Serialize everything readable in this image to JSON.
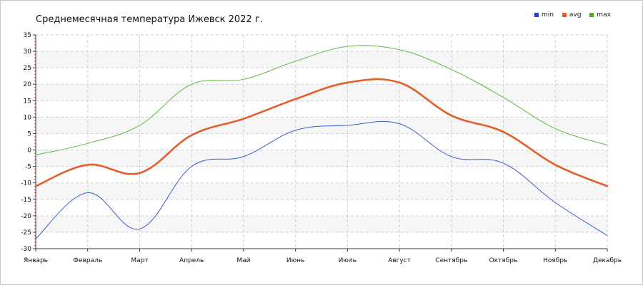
{
  "chart_data": {
    "type": "line",
    "title": "Среднемесячная температура Ижевск  2022 г.",
    "categories": [
      "Январь",
      "Февраль",
      "Март",
      "Апрель",
      "Май",
      "Июнь",
      "Июль",
      "Август",
      "Сентябрь",
      "Октябрь",
      "Ноябрь",
      "Декабрь"
    ],
    "series": [
      {
        "name": "min",
        "color": "#3a5fcd",
        "values": [
          -27,
          -13,
          -24,
          -5,
          -2,
          6,
          7.5,
          8,
          -2,
          -4,
          -16,
          -26
        ]
      },
      {
        "name": "avg",
        "color": "#e35f2a",
        "values": [
          -11,
          -4.5,
          -7,
          4.5,
          9.5,
          15.5,
          20.5,
          20.5,
          10.5,
          5.5,
          -4.5,
          -11
        ]
      },
      {
        "name": "max",
        "color": "#5dba3c",
        "values": [
          -1.5,
          2,
          7.5,
          20,
          21.5,
          27,
          31.5,
          30.5,
          24.5,
          16,
          6.5,
          1.5
        ]
      }
    ],
    "ylim": [
      -30,
      35
    ],
    "yticks": [
      -30,
      -25,
      -20,
      -15,
      -10,
      -5,
      0,
      5,
      10,
      15,
      20,
      25,
      30,
      35
    ],
    "grid": true,
    "legend": "top-right"
  }
}
